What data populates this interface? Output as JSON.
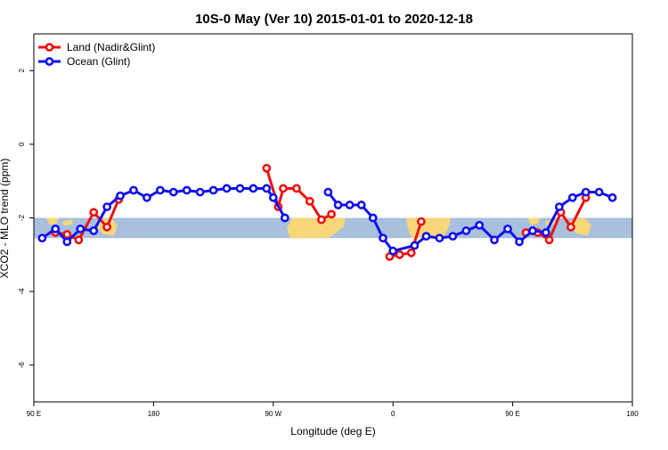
{
  "chart_data": {
    "type": "line",
    "title": "10S-0 May (Ver 10)   2015-01-01 to 2020-12-18",
    "xlabel": "Longitude (deg E)",
    "ylabel": "XCO2 - MLO trend (ppm)",
    "xlim": [
      90,
      450
    ],
    "ylim": [
      -7,
      3
    ],
    "x_ticks": [
      {
        "value": 90,
        "label": "90 E"
      },
      {
        "value": 162,
        "label": "180"
      },
      {
        "value": 234,
        "label": "90 W"
      },
      {
        "value": 306,
        "label": "0"
      },
      {
        "value": 378,
        "label": "90 E"
      },
      {
        "value": 450,
        "label": "180"
      }
    ],
    "y_ticks": [
      {
        "value": 2,
        "label": "2"
      },
      {
        "value": 0,
        "label": "0"
      },
      {
        "value": -2,
        "label": "-2"
      },
      {
        "value": -4,
        "label": "-4"
      },
      {
        "value": -6,
        "label": "-6"
      }
    ],
    "grid": false,
    "legend_position": "top-left",
    "band": {
      "y_min": -2.55,
      "y_max": -2.0,
      "color": "#a8bfdd",
      "land_color": "#f7d77a"
    },
    "series": [
      {
        "name": "Land (Nadir&Glint)",
        "color": "#ee1111",
        "segments": [
          [
            [
              103,
              -2.4
            ],
            [
              110,
              -2.45
            ],
            [
              117,
              -2.6
            ],
            [
              126,
              -1.85
            ],
            [
              134,
              -2.25
            ],
            [
              141,
              -1.5
            ]
          ],
          [
            [
              230,
              -0.65
            ],
            [
              237,
              -1.7
            ],
            [
              240,
              -1.2
            ],
            [
              248,
              -1.2
            ],
            [
              256,
              -1.55
            ],
            [
              263,
              -2.05
            ],
            [
              269,
              -1.9
            ]
          ],
          [
            [
              304,
              -3.05
            ],
            [
              310,
              -3.0
            ],
            [
              317,
              -2.95
            ],
            [
              323,
              -2.1
            ]
          ],
          [
            [
              386,
              -2.4
            ],
            [
              393,
              -2.4
            ],
            [
              400,
              -2.6
            ],
            [
              407,
              -1.85
            ],
            [
              413,
              -2.25
            ],
            [
              422,
              -1.45
            ]
          ]
        ]
      },
      {
        "name": "Ocean (Glint)",
        "color": "#1111ee",
        "segments": [
          [
            [
              95,
              -2.55
            ],
            [
              103,
              -2.3
            ],
            [
              110,
              -2.65
            ],
            [
              118,
              -2.3
            ],
            [
              126,
              -2.35
            ],
            [
              134,
              -1.7
            ],
            [
              142,
              -1.4
            ],
            [
              150,
              -1.25
            ],
            [
              158,
              -1.45
            ],
            [
              166,
              -1.25
            ],
            [
              174,
              -1.3
            ],
            [
              182,
              -1.25
            ],
            [
              190,
              -1.3
            ],
            [
              198,
              -1.25
            ],
            [
              206,
              -1.2
            ],
            [
              214,
              -1.2
            ],
            [
              222,
              -1.2
            ],
            [
              230,
              -1.2
            ],
            [
              234,
              -1.45
            ],
            [
              241,
              -2.0
            ]
          ],
          [
            [
              267,
              -1.3
            ],
            [
              273,
              -1.65
            ],
            [
              280,
              -1.65
            ],
            [
              287,
              -1.65
            ],
            [
              294,
              -2.0
            ],
            [
              300,
              -2.55
            ],
            [
              306,
              -2.9
            ],
            [
              319,
              -2.75
            ],
            [
              326,
              -2.5
            ],
            [
              334,
              -2.55
            ],
            [
              342,
              -2.5
            ],
            [
              350,
              -2.35
            ],
            [
              358,
              -2.2
            ],
            [
              367,
              -2.6
            ],
            [
              375,
              -2.3
            ],
            [
              382,
              -2.65
            ],
            [
              390,
              -2.35
            ],
            [
              398,
              -2.4
            ],
            [
              406,
              -1.7
            ],
            [
              414,
              -1.45
            ],
            [
              422,
              -1.3
            ],
            [
              430,
              -1.3
            ],
            [
              438,
              -1.45
            ]
          ]
        ]
      }
    ]
  }
}
